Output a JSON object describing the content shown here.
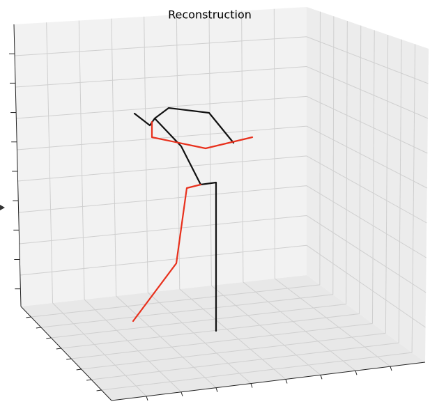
{
  "chart_data": {
    "type": "line3d",
    "title": "Reconstruction"
  }
}
